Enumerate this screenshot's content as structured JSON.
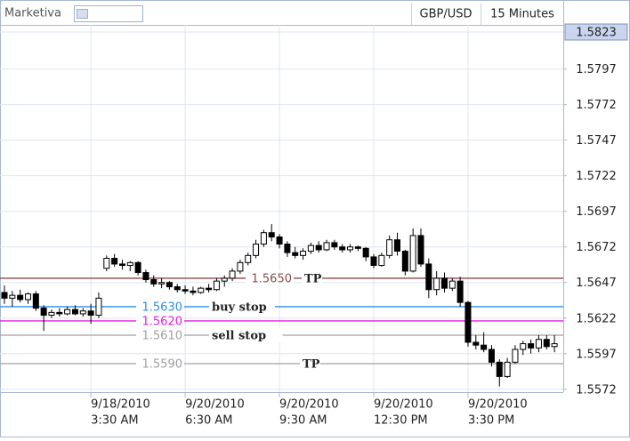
{
  "header": {
    "brand": "Marketiva",
    "symbol": "GBP/USD",
    "interval": "15 Minutes"
  },
  "chart_data": {
    "type": "candlestick",
    "categories": [
      null,
      null,
      null,
      null,
      null,
      null,
      null,
      null,
      null,
      null,
      null,
      [
        "9/18/2010",
        "3:30 AM"
      ],
      null,
      null,
      null,
      null,
      null,
      null,
      null,
      null,
      null,
      null,
      null,
      [
        "9/20/2010",
        "6:30 AM"
      ],
      null,
      null,
      null,
      null,
      null,
      null,
      null,
      null,
      null,
      null,
      null,
      [
        "9/20/2010",
        "9:30 AM"
      ],
      null,
      null,
      null,
      null,
      null,
      null,
      null,
      null,
      null,
      null,
      null,
      [
        "9/20/2010",
        "12:30 PM"
      ],
      null,
      null,
      null,
      null,
      null,
      null,
      null,
      null,
      null,
      null,
      null,
      [
        "9/20/2010",
        "3:30 PM"
      ],
      null,
      null,
      null,
      null,
      null,
      null,
      null,
      null,
      null,
      null,
      null
    ],
    "open": [
      1.564,
      1.5636,
      1.5638,
      1.5635,
      1.5639,
      1.5629,
      1.5624,
      1.5626,
      1.5625,
      1.5628,
      1.5625,
      1.5627,
      1.5624,
      1.5657,
      1.5664,
      1.566,
      1.5659,
      1.5661,
      1.5654,
      1.5649,
      1.5646,
      1.5647,
      1.5644,
      1.5642,
      1.5641,
      1.564,
      1.5643,
      1.5642,
      1.5648,
      1.565,
      1.5655,
      1.5661,
      1.5666,
      1.5674,
      1.5682,
      1.5679,
      1.5674,
      1.5668,
      1.5666,
      1.5669,
      1.5673,
      1.567,
      1.5675,
      1.5672,
      1.567,
      1.5672,
      1.5671,
      1.5665,
      1.5659,
      1.5666,
      1.5677,
      1.5669,
      1.5655,
      1.568,
      1.566,
      1.5642,
      1.565,
      1.5643,
      1.5648,
      1.5633,
      1.5605,
      1.5603,
      1.56,
      1.5591,
      1.5581,
      1.5591,
      1.56,
      1.5604,
      1.5601,
      1.5607,
      1.5602
    ],
    "high": [
      1.5645,
      1.5641,
      1.5642,
      1.564,
      1.5641,
      1.5631,
      1.5628,
      1.5629,
      1.563,
      1.5631,
      1.5629,
      1.5632,
      1.564,
      1.5666,
      1.5667,
      1.5663,
      1.5662,
      1.5662,
      1.5656,
      1.5652,
      1.565,
      1.5648,
      1.5646,
      1.5645,
      1.5644,
      1.5644,
      1.5646,
      1.565,
      1.5652,
      1.5657,
      1.5663,
      1.5668,
      1.5677,
      1.5684,
      1.5688,
      1.5681,
      1.5676,
      1.5672,
      1.5671,
      1.5675,
      1.5676,
      1.5677,
      1.5677,
      1.5674,
      1.5674,
      1.5673,
      1.5672,
      1.5667,
      1.5668,
      1.568,
      1.5682,
      1.567,
      1.5685,
      1.5685,
      1.5664,
      1.5655,
      1.5654,
      1.565,
      1.5651,
      1.5634,
      1.561,
      1.5612,
      1.5603,
      1.5593,
      1.5594,
      1.5603,
      1.5606,
      1.5607,
      1.561,
      1.561,
      1.561
    ],
    "low": [
      1.5632,
      1.563,
      1.5633,
      1.5632,
      1.5627,
      1.5613,
      1.5622,
      1.5623,
      1.5624,
      1.5624,
      1.5623,
      1.5618,
      1.5622,
      1.5655,
      1.5658,
      1.5656,
      1.5655,
      1.5652,
      1.5647,
      1.5644,
      1.5643,
      1.5642,
      1.564,
      1.5639,
      1.5638,
      1.5639,
      1.564,
      1.5641,
      1.5644,
      1.5648,
      1.5653,
      1.5659,
      1.5664,
      1.5672,
      1.5676,
      1.5671,
      1.5665,
      1.5664,
      1.5663,
      1.5667,
      1.5668,
      1.5669,
      1.567,
      1.5668,
      1.5668,
      1.5669,
      1.5662,
      1.5657,
      1.5658,
      1.5664,
      1.5666,
      1.5652,
      1.5654,
      1.5658,
      1.5636,
      1.5638,
      1.564,
      1.5641,
      1.563,
      1.5602,
      1.56,
      1.5598,
      1.5588,
      1.5574,
      1.558,
      1.559,
      1.5596,
      1.5597,
      1.5598,
      1.56,
      1.5598
    ],
    "close": [
      1.5636,
      1.5638,
      1.5635,
      1.5639,
      1.5629,
      1.5624,
      1.5626,
      1.5625,
      1.5628,
      1.5625,
      1.5627,
      1.5624,
      1.5636,
      1.5664,
      1.566,
      1.5659,
      1.5661,
      1.5654,
      1.5649,
      1.5646,
      1.5647,
      1.5644,
      1.5642,
      1.5641,
      1.564,
      1.5643,
      1.5642,
      1.5648,
      1.565,
      1.5655,
      1.5661,
      1.5666,
      1.5674,
      1.5682,
      1.5679,
      1.5674,
      1.5668,
      1.5666,
      1.5669,
      1.5673,
      1.567,
      1.5675,
      1.5672,
      1.567,
      1.5672,
      1.5671,
      1.5665,
      1.5659,
      1.5666,
      1.5677,
      1.5669,
      1.5655,
      1.568,
      1.566,
      1.5642,
      1.565,
      1.5643,
      1.5648,
      1.5633,
      1.5605,
      1.5603,
      1.56,
      1.5591,
      1.5581,
      1.5591,
      1.56,
      1.5604,
      1.5601,
      1.5607,
      1.5602,
      1.5604
    ],
    "up_color": "#ffffff",
    "down_color": "#000000",
    "ylim": [
      1.557,
      1.5828
    ],
    "yticks": [
      1.5823,
      1.5797,
      1.5772,
      1.5747,
      1.5722,
      1.5697,
      1.5672,
      1.5647,
      1.5622,
      1.5597,
      1.5572
    ],
    "grid": true,
    "levels": [
      {
        "value": 1.565,
        "label": "1.5650",
        "name": "TP",
        "color": "#8b4a4a"
      },
      {
        "value": 1.563,
        "label": "1.5630",
        "name": "buy stop",
        "color": "#2e8fe8"
      },
      {
        "value": 1.562,
        "label": "1.5620",
        "color": "#e020e0"
      },
      {
        "value": 1.561,
        "label": "1.5610",
        "name": "sell stop",
        "color": "#a0a0a0"
      },
      {
        "value": 1.559,
        "label": "1.5590",
        "name": "TP",
        "color": "#a0a0a0"
      }
    ]
  }
}
